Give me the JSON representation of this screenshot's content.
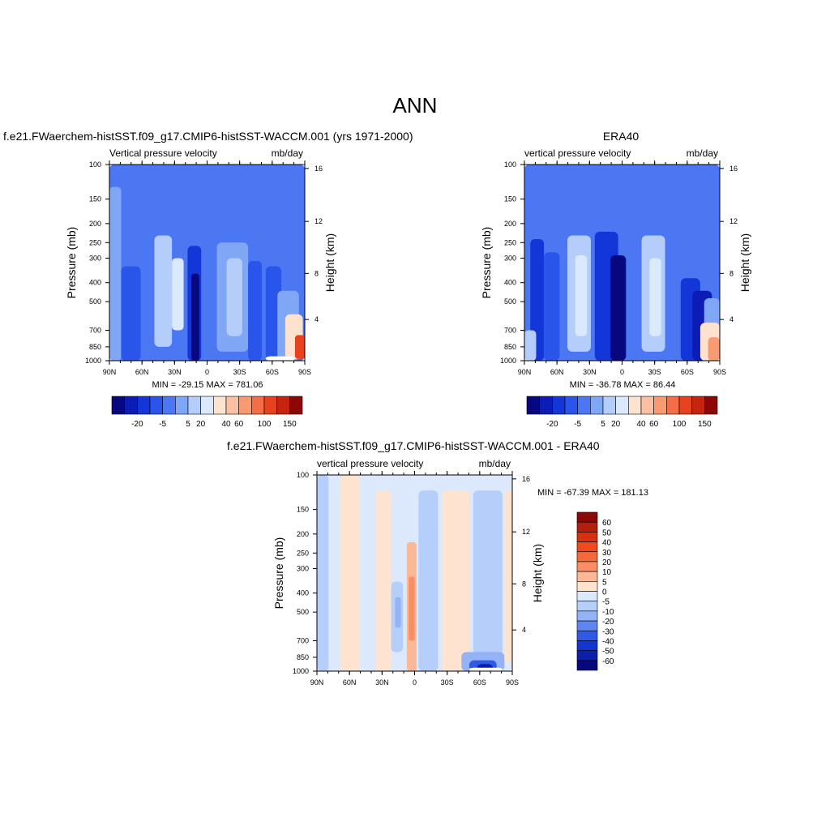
{
  "title": "ANN",
  "panels": [
    {
      "subtitle": "f.e21.FWaerchem-histSST.f09_g17.CMIP6-histSST-WACCM.001 (yrs 1971-2000)",
      "left_label": "Vertical pressure velocity",
      "right_label": "mb/day",
      "ylabel": "Pressure (mb)",
      "y2label": "Height (km)",
      "stats": "MIN = -29.15  MAX = 781.06"
    },
    {
      "subtitle": "ERA40",
      "left_label": "vertical pressure velocity",
      "right_label": "mb/day",
      "ylabel": "Pressure (mb)",
      "y2label": "Height (km)",
      "stats": "MIN = -36.78  MAX =  86.44"
    },
    {
      "subtitle": "f.e21.FWaerchem-histSST.f09_g17.CMIP6-histSST-WACCM.001 - ERA40",
      "left_label": "vertical pressure velocity",
      "right_label": "mb/day",
      "ylabel": "Pressure (mb)",
      "y2label": "Height (km)",
      "stats": "MIN = -67.39  MAX = 181.13"
    }
  ],
  "chart_data": [
    {
      "type": "heatmap",
      "title": "f.e21.FWaerchem-histSST.f09_g17.CMIP6-histSST-WACCM.001 (yrs 1971-2000)",
      "x_ticks": [
        "90N",
        "60N",
        "30N",
        "0",
        "30S",
        "60S",
        "90S"
      ],
      "y_ticks": [
        100,
        150,
        200,
        250,
        300,
        400,
        500,
        700,
        850,
        1000
      ],
      "y2_ticks": [
        16,
        12,
        8,
        4
      ],
      "xlabel": "",
      "ylabel": "Pressure (mb)",
      "y2label": "Height (km)",
      "units": "mb/day",
      "min": -29.15,
      "max": 781.06,
      "colorbar_levels": [
        "-20",
        "-5",
        "5",
        "20",
        "40",
        "60",
        "100",
        "150"
      ]
    },
    {
      "type": "heatmap",
      "title": "ERA40",
      "x_ticks": [
        "90N",
        "60N",
        "30N",
        "0",
        "30S",
        "60S",
        "90S"
      ],
      "y_ticks": [
        100,
        150,
        200,
        250,
        300,
        400,
        500,
        700,
        850,
        1000
      ],
      "y2_ticks": [
        16,
        12,
        8,
        4
      ],
      "xlabel": "",
      "ylabel": "Pressure (mb)",
      "y2label": "Height (km)",
      "units": "mb/day",
      "min": -36.78,
      "max": 86.44,
      "colorbar_levels": [
        "-20",
        "-5",
        "5",
        "20",
        "40",
        "60",
        "100",
        "150"
      ]
    },
    {
      "type": "heatmap",
      "title": "f.e21.FWaerchem-histSST.f09_g17.CMIP6-histSST-WACCM.001 - ERA40",
      "x_ticks": [
        "90N",
        "60N",
        "30N",
        "0",
        "30S",
        "60S",
        "90S"
      ],
      "y_ticks": [
        100,
        150,
        200,
        250,
        300,
        400,
        500,
        700,
        850,
        1000
      ],
      "y2_ticks": [
        16,
        12,
        8,
        4
      ],
      "xlabel": "",
      "ylabel": "Pressure (mb)",
      "y2label": "Height (km)",
      "units": "mb/day",
      "min": -67.39,
      "max": 181.13,
      "colorbar_levels": [
        "60",
        "50",
        "40",
        "30",
        "20",
        "10",
        "5",
        "0",
        "-5",
        "-10",
        "-20",
        "-30",
        "-40",
        "-50",
        "-60"
      ]
    }
  ],
  "colors": {
    "abs_scale": [
      "#08087e",
      "#0c1cb4",
      "#1336d8",
      "#2a55ea",
      "#4c77f2",
      "#80a6f6",
      "#b5cdfa",
      "#dbe9fd",
      "#fde2d0",
      "#fbc0a3",
      "#f89a72",
      "#f46d45",
      "#e8411d",
      "#c42410",
      "#8c0707"
    ],
    "diff_scale": [
      "#8c0707",
      "#b51d0c",
      "#d83011",
      "#f04b1e",
      "#f66a3a",
      "#f98e64",
      "#fbb896",
      "#fde3d0",
      "#dce9fd",
      "#b6cefa",
      "#94b2f6",
      "#5f86ef",
      "#3059e6",
      "#1435d2",
      "#0b1eac",
      "#08087e"
    ]
  }
}
